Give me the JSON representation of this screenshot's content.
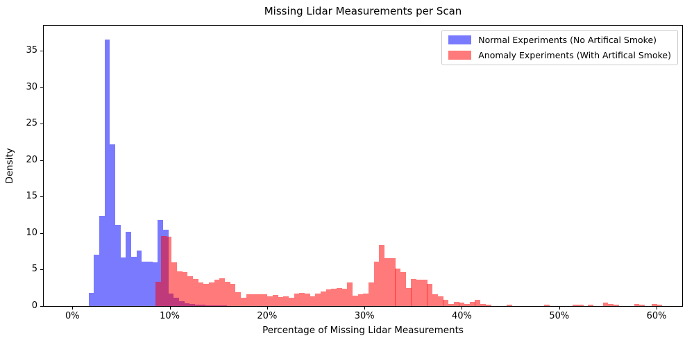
{
  "chart_data": {
    "type": "bar",
    "subtype": "overlapping-density-histogram",
    "title": "Missing Lidar Measurements per Scan",
    "xlabel": "Percentage of Missing Lidar Measurements",
    "ylabel": "Density",
    "grid": false,
    "legend_position": "upper right",
    "xlim": [
      -2.94,
      62.63
    ],
    "ylim": [
      0,
      38.46
    ],
    "x_tick_values": [
      0,
      10,
      20,
      30,
      40,
      50,
      60
    ],
    "x_tick_labels": [
      "0%",
      "10%",
      "20%",
      "30%",
      "40%",
      "50%",
      "60%"
    ],
    "y_tick_values": [
      0,
      5,
      10,
      15,
      20,
      25,
      30,
      35
    ],
    "y_tick_labels": [
      "0",
      "5",
      "10",
      "15",
      "20",
      "25",
      "30",
      "35"
    ],
    "bin_width_pct": 0.55,
    "colors": {
      "normal_fill": "rgba(0,0,255,0.52)",
      "anomaly_fill": "rgba(255,0,0,0.52)",
      "normal_on_white_hex": "#7a7af2",
      "anomaly_on_white_hex": "#fb7d7d",
      "overlap_hex": "#c2417f",
      "spine_hex": "#000000",
      "legend_border_hex": "#cccccc"
    },
    "series": [
      {
        "name": "Normal Experiments (No Artifical Smoke)",
        "fill": "rgba(0,0,255,0.52)",
        "bars": [
          [
            1.67,
            1.85
          ],
          [
            2.21,
            7.0
          ],
          [
            2.76,
            12.4
          ],
          [
            3.31,
            36.6
          ],
          [
            3.85,
            22.2
          ],
          [
            4.4,
            11.1
          ],
          [
            4.95,
            6.7
          ],
          [
            5.49,
            10.2
          ],
          [
            6.04,
            6.8
          ],
          [
            6.59,
            7.6
          ],
          [
            7.13,
            6.1
          ],
          [
            7.68,
            6.1
          ],
          [
            8.23,
            6.0
          ],
          [
            8.77,
            11.8
          ],
          [
            9.32,
            10.5
          ],
          [
            9.87,
            1.7
          ],
          [
            10.41,
            1.15
          ],
          [
            10.96,
            0.65
          ],
          [
            11.51,
            0.4
          ],
          [
            12.05,
            0.25
          ],
          [
            12.6,
            0.16
          ],
          [
            13.15,
            0.16
          ],
          [
            13.69,
            0.08
          ],
          [
            14.24,
            0.07
          ],
          [
            14.79,
            0.07
          ],
          [
            15.33,
            0.05
          ]
        ]
      },
      {
        "name": "Anomaly Experiments (With Artifical Smoke)",
        "fill": "rgba(255,0,0,0.52)",
        "bars": [
          [
            8.55,
            3.3
          ],
          [
            9.1,
            9.65
          ],
          [
            9.65,
            9.55
          ],
          [
            10.19,
            6.0
          ],
          [
            10.74,
            4.8
          ],
          [
            11.29,
            4.65
          ],
          [
            11.83,
            4.05
          ],
          [
            12.38,
            3.7
          ],
          [
            12.93,
            3.25
          ],
          [
            13.47,
            3.05
          ],
          [
            14.02,
            3.25
          ],
          [
            14.57,
            3.6
          ],
          [
            15.11,
            3.8
          ],
          [
            15.66,
            3.35
          ],
          [
            16.21,
            3.05
          ],
          [
            16.75,
            1.9
          ],
          [
            17.3,
            1.1
          ],
          [
            17.85,
            1.6
          ],
          [
            18.39,
            1.65
          ],
          [
            18.94,
            1.6
          ],
          [
            19.49,
            1.65
          ],
          [
            20.03,
            1.35
          ],
          [
            20.58,
            1.5
          ],
          [
            21.13,
            1.2
          ],
          [
            21.67,
            1.35
          ],
          [
            22.22,
            1.1
          ],
          [
            22.77,
            1.7
          ],
          [
            23.31,
            1.8
          ],
          [
            23.86,
            1.75
          ],
          [
            24.41,
            1.3
          ],
          [
            24.95,
            1.75
          ],
          [
            25.5,
            2.0
          ],
          [
            26.05,
            2.25
          ],
          [
            26.59,
            2.35
          ],
          [
            27.14,
            2.45
          ],
          [
            27.69,
            2.35
          ],
          [
            28.23,
            3.2
          ],
          [
            28.78,
            1.4
          ],
          [
            29.33,
            1.6
          ],
          [
            29.87,
            1.7
          ],
          [
            30.42,
            3.2
          ],
          [
            30.97,
            6.1
          ],
          [
            31.51,
            8.4
          ],
          [
            32.06,
            6.6
          ],
          [
            32.61,
            6.6
          ],
          [
            33.15,
            5.1
          ],
          [
            33.7,
            4.65
          ],
          [
            34.25,
            2.45
          ],
          [
            34.79,
            3.75
          ],
          [
            35.34,
            3.6
          ],
          [
            35.89,
            3.6
          ],
          [
            36.43,
            3.05
          ],
          [
            36.98,
            1.6
          ],
          [
            37.53,
            1.35
          ],
          [
            38.07,
            0.85
          ],
          [
            38.62,
            0.3
          ],
          [
            39.17,
            0.55
          ],
          [
            39.71,
            0.5
          ],
          [
            40.26,
            0.33
          ],
          [
            40.81,
            0.6
          ],
          [
            41.35,
            0.85
          ],
          [
            41.9,
            0.25
          ],
          [
            42.45,
            0.15
          ],
          [
            44.63,
            0.15
          ],
          [
            48.46,
            0.15
          ],
          [
            51.38,
            0.2
          ],
          [
            51.93,
            0.2
          ],
          [
            52.93,
            0.15
          ],
          [
            54.48,
            0.5
          ],
          [
            55.03,
            0.25
          ],
          [
            55.57,
            0.15
          ],
          [
            57.69,
            0.3
          ],
          [
            58.24,
            0.15
          ],
          [
            59.48,
            0.33
          ],
          [
            60.03,
            0.15
          ]
        ]
      }
    ]
  }
}
